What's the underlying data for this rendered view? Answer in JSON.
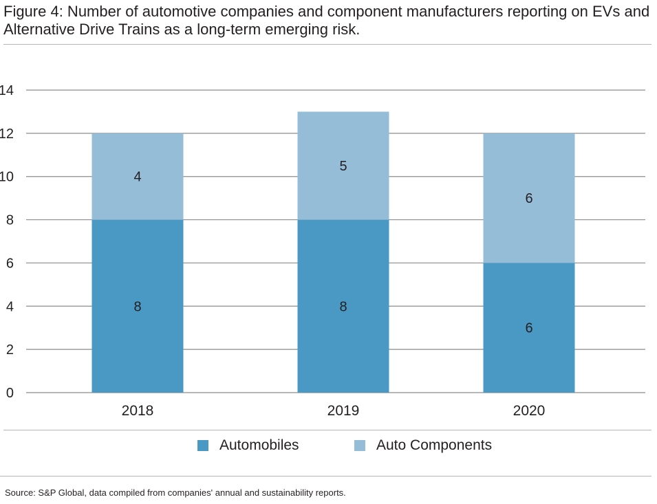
{
  "title": "Figure 4: Number of automotive companies and component manufacturers reporting on EVs and Alternative Drive Trains as a long-term emerging risk.",
  "source": "Source: S&P Global, data compiled from companies' annual and sustainability reports.",
  "colors": {
    "automobiles": "#4a98c4",
    "auto_components": "#96bdd8",
    "grid": "#8c8c8c"
  },
  "chart_data": {
    "type": "bar",
    "stacked": true,
    "categories": [
      "2018",
      "2019",
      "2020"
    ],
    "series": [
      {
        "name": "Automobiles",
        "values": [
          8,
          8,
          6
        ],
        "labels": [
          "8",
          "8",
          "6"
        ],
        "color": "#4a98c4"
      },
      {
        "name": "Auto Components",
        "values": [
          4,
          5,
          6
        ],
        "labels": [
          "4",
          "5",
          "6"
        ],
        "color": "#96bdd8"
      }
    ],
    "ylim": [
      0,
      14
    ],
    "yticks": [
      "0",
      "2",
      "4",
      "6",
      "8",
      "10",
      "12",
      "14"
    ],
    "grid": true,
    "legend_position": "bottom"
  }
}
